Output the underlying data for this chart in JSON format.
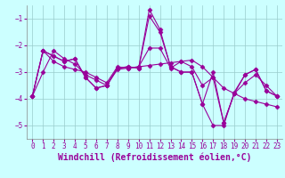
{
  "title": "",
  "xlabel": "Windchill (Refroidissement éolien,°C)",
  "x": [
    0,
    1,
    2,
    3,
    4,
    5,
    6,
    7,
    8,
    9,
    10,
    11,
    12,
    13,
    14,
    15,
    16,
    17,
    18,
    19,
    20,
    21,
    22,
    23
  ],
  "series": [
    [
      -3.9,
      -2.2,
      -2.4,
      -2.6,
      -2.5,
      -3.2,
      -3.6,
      -3.5,
      -2.85,
      -2.8,
      -2.85,
      -0.65,
      -1.4,
      -2.8,
      -3.0,
      -3.0,
      -4.2,
      -5.0,
      -5.0,
      -3.75,
      -3.1,
      -2.9,
      -3.7,
      -3.9
    ],
    [
      -3.9,
      -2.2,
      -2.4,
      -2.6,
      -2.5,
      -3.2,
      -3.6,
      -3.5,
      -2.85,
      -2.8,
      -2.85,
      -0.9,
      -1.5,
      -2.8,
      -3.0,
      -3.0,
      -4.2,
      -3.0,
      -4.9,
      -3.8,
      -3.1,
      -2.9,
      -3.7,
      -3.9
    ],
    [
      -3.9,
      -2.2,
      -2.6,
      -2.8,
      -2.9,
      -3.0,
      -3.2,
      -3.4,
      -2.8,
      -2.85,
      -2.8,
      -2.1,
      -2.1,
      -2.85,
      -2.6,
      -2.8,
      -3.5,
      -3.2,
      -4.9,
      -3.8,
      -3.4,
      -3.1,
      -3.5,
      -3.9
    ],
    [
      -3.9,
      -3.0,
      -2.2,
      -2.5,
      -2.7,
      -3.1,
      -3.3,
      -3.5,
      -2.9,
      -2.85,
      -2.8,
      -2.75,
      -2.7,
      -2.65,
      -2.6,
      -2.55,
      -2.8,
      -3.2,
      -3.6,
      -3.8,
      -4.0,
      -4.1,
      -4.2,
      -4.3
    ]
  ],
  "line_color": "#990099",
  "marker": "D",
  "markersize": 2.5,
  "linewidth": 0.8,
  "bg_color": "#ccffff",
  "grid_color": "#99cccc",
  "ylim": [
    -5.5,
    -0.5
  ],
  "xlim": [
    -0.5,
    23.5
  ],
  "yticks": [
    -5,
    -4,
    -3,
    -2,
    -1
  ],
  "xticks": [
    0,
    1,
    2,
    3,
    4,
    5,
    6,
    7,
    8,
    9,
    10,
    11,
    12,
    13,
    14,
    15,
    16,
    17,
    18,
    19,
    20,
    21,
    22,
    23
  ],
  "tick_fontsize": 5.5,
  "xlabel_fontsize": 7.0
}
